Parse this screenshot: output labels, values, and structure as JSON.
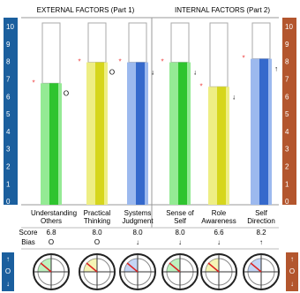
{
  "header": {
    "left": "EXTERNAL FACTORS (Part 1)",
    "right": "INTERNAL FACTORS (Part 2)"
  },
  "chart_data": {
    "type": "bar",
    "categories": [
      "Understanding Others",
      "Practical Thinking",
      "Systems Judgment",
      "Sense of Self",
      "Role Awareness",
      "Self Direction"
    ],
    "values": [
      6.8,
      8.0,
      8.0,
      8.0,
      6.6,
      8.2
    ],
    "value_labels": [
      "6.8",
      "8.0",
      "8.0",
      "8.0",
      "6.6",
      "8.2"
    ],
    "bias": [
      "O",
      "O",
      "↓",
      "↓",
      "↓",
      "↑"
    ],
    "colors": [
      "#2fc42f",
      "#d6d61c",
      "#3569cc",
      "#2fc42f",
      "#d6d61c",
      "#3569cc"
    ],
    "light_colors": [
      "#94ea94",
      "#eeee84",
      "#9cb9ee",
      "#94ea94",
      "#eeee84",
      "#9cb9ee"
    ],
    "ylim": [
      0,
      10
    ],
    "yticks": [
      0,
      1,
      2,
      3,
      4,
      5,
      6,
      7,
      8,
      9,
      10
    ],
    "row_labels": {
      "score": "Score",
      "bias": "Bias"
    },
    "bias_icons": [
      "↑",
      "O",
      "↓"
    ]
  }
}
